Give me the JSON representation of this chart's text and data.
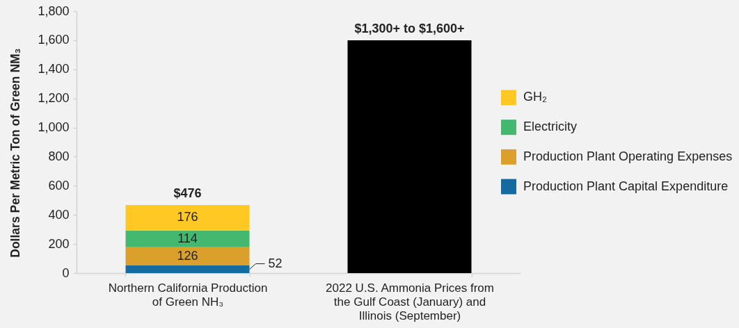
{
  "chart_data": {
    "type": "bar",
    "stacked": true,
    "ylabel": "Dollars Per Metric Ton of Green NM₃",
    "categories": [
      "Northern California Production of Green NH₃",
      "2022 U.S. Ammonia Prices from the Gulf Coast (January) and Illinois (September)"
    ],
    "series": [
      {
        "name": "Production Plant Capital Expenditure",
        "color": "#146ba0",
        "values": [
          52,
          null
        ],
        "value_labels": [
          "52",
          null
        ]
      },
      {
        "name": "Production Plant Operating Expenses",
        "color": "#dba02c",
        "values": [
          126,
          null
        ],
        "value_labels": [
          "126",
          null
        ]
      },
      {
        "name": "Electricity",
        "color": "#45b86f",
        "values": [
          114,
          null
        ],
        "value_labels": [
          "114",
          null
        ]
      },
      {
        "name": "GH₂",
        "color": "#ffc822",
        "values": [
          176,
          null
        ],
        "value_labels": [
          "176",
          null
        ]
      },
      {
        "color": "#000000",
        "values": [
          null,
          1600
        ]
      }
    ],
    "annotations": [
      {
        "text": "$476",
        "x": "Northern California Production of Green NH₃",
        "y": 468
      },
      {
        "text": "$1,300+ to $1,600+",
        "x": "2022 U.S. Ammonia Prices from the Gulf Coast (January) and Illinois (September)",
        "y": 1600
      }
    ],
    "ylim": [
      0,
      1800
    ],
    "yticks": [
      0,
      200,
      400,
      600,
      800,
      {
        "value": 1000,
        "label": "1,000"
      },
      {
        "value": 1200,
        "label": "1,200"
      },
      {
        "value": 1400,
        "label": "1,400"
      },
      {
        "value": 1600,
        "label": "1,600"
      },
      {
        "value": 1800,
        "label": "1,800"
      }
    ],
    "legend": "right"
  }
}
